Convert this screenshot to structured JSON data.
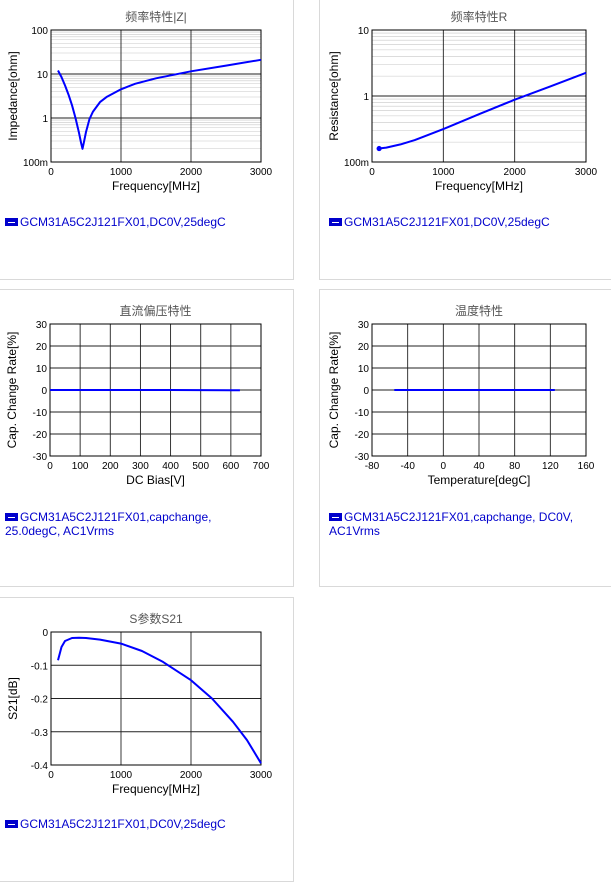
{
  "chart_data": [
    {
      "id": "z",
      "type": "line",
      "title": "频率特性|Z|",
      "xlabel": "Frequency[MHz]",
      "ylabel": "Impedance[ohm]",
      "x_scale": "linear",
      "y_scale": "log",
      "xlim": [
        0,
        3000
      ],
      "ylim": [
        0.1,
        100
      ],
      "xticks": [
        "0",
        "1000",
        "2000",
        "3000"
      ],
      "yticks": [
        "100m",
        "1",
        "10",
        "100"
      ],
      "legend": "GCM31A5C2J121FX01,DC0V,25degC",
      "color": "#0000ff",
      "series": [
        {
          "x": [
            100,
            150,
            200,
            250,
            300,
            350,
            400,
            430,
            450,
            470,
            500,
            550,
            600,
            700,
            800,
            1000,
            1200,
            1500,
            2000,
            2500,
            3000
          ],
          "y": [
            12,
            8.5,
            5.5,
            3.4,
            1.95,
            1.0,
            0.46,
            0.27,
            0.2,
            0.28,
            0.48,
            0.95,
            1.4,
            2.3,
            3.05,
            4.5,
            6.0,
            8.0,
            11.5,
            15.5,
            21
          ]
        }
      ]
    },
    {
      "id": "r",
      "type": "line",
      "title": "频率特性R",
      "xlabel": "Frequency[MHz]",
      "ylabel": "Resistance[ohm]",
      "x_scale": "linear",
      "y_scale": "log",
      "xlim": [
        0,
        3000
      ],
      "ylim": [
        0.1,
        10
      ],
      "xticks": [
        "0",
        "1000",
        "2000",
        "3000"
      ],
      "yticks": [
        "100m",
        "1",
        "10"
      ],
      "legend": "GCM31A5C2J121FX01,DC0V,25degC",
      "color": "#0000ff",
      "series": [
        {
          "x": [
            100,
            200,
            400,
            600,
            800,
            1000,
            1500,
            2000,
            2500,
            3000
          ],
          "y": [
            0.16,
            0.165,
            0.185,
            0.215,
            0.26,
            0.315,
            0.53,
            0.88,
            1.4,
            2.25
          ]
        }
      ]
    },
    {
      "id": "dc",
      "type": "line",
      "title": "直流偏压特性",
      "xlabel": "DC Bias[V]",
      "ylabel": "Cap. Change Rate[%]",
      "x_scale": "linear",
      "y_scale": "linear",
      "xlim": [
        0,
        700
      ],
      "ylim": [
        -30,
        30
      ],
      "xticks": [
        "0",
        "100",
        "200",
        "300",
        "400",
        "500",
        "600",
        "700"
      ],
      "yticks": [
        "-30",
        "-20",
        "-10",
        "0",
        "10",
        "20",
        "30"
      ],
      "legend": "GCM31A5C2J121FX01,capchange,\n25.0degC, AC1Vrms",
      "color": "#0000ff",
      "series": [
        {
          "x": [
            0,
            100,
            200,
            300,
            400,
            500,
            600,
            630
          ],
          "y": [
            0,
            0,
            0,
            0,
            0,
            -0.05,
            -0.1,
            -0.1
          ]
        }
      ]
    },
    {
      "id": "temp",
      "type": "line",
      "title": "温度特性",
      "xlabel": "Temperature[degC]",
      "ylabel": "Cap. Change Rate[%]",
      "x_scale": "linear",
      "y_scale": "linear",
      "xlim": [
        -80,
        160
      ],
      "ylim": [
        -30,
        30
      ],
      "xticks": [
        "-80",
        "-40",
        "0",
        "40",
        "80",
        "120",
        "160"
      ],
      "yticks": [
        "-30",
        "-20",
        "-10",
        "0",
        "10",
        "20",
        "30"
      ],
      "legend": "GCM31A5C2J121FX01,capchange, DC0V,\nAC1Vrms",
      "color": "#0000ff",
      "series": [
        {
          "x": [
            -55,
            0,
            25,
            60,
            100,
            125
          ],
          "y": [
            0,
            0,
            0,
            0,
            0,
            0
          ]
        }
      ]
    },
    {
      "id": "s21",
      "type": "line",
      "title": "S参数S21",
      "xlabel": "Frequency[MHz]",
      "ylabel": "S21[dB]",
      "x_scale": "linear",
      "y_scale": "linear",
      "xlim": [
        0,
        3000
      ],
      "ylim": [
        -0.4,
        0
      ],
      "xticks": [
        "0",
        "1000",
        "2000",
        "3000"
      ],
      "yticks": [
        "-0.4",
        "-0.3",
        "-0.2",
        "-0.1",
        "0"
      ],
      "legend": "GCM31A5C2J121FX01,DC0V,25degC",
      "color": "#0000ff",
      "series": [
        {
          "x": [
            100,
            150,
            200,
            300,
            400,
            500,
            700,
            1000,
            1300,
            1600,
            2000,
            2300,
            2600,
            2800,
            3000
          ],
          "y": [
            -0.085,
            -0.045,
            -0.027,
            -0.018,
            -0.017,
            -0.018,
            -0.023,
            -0.035,
            -0.057,
            -0.09,
            -0.145,
            -0.2,
            -0.27,
            -0.325,
            -0.395
          ]
        }
      ]
    }
  ]
}
